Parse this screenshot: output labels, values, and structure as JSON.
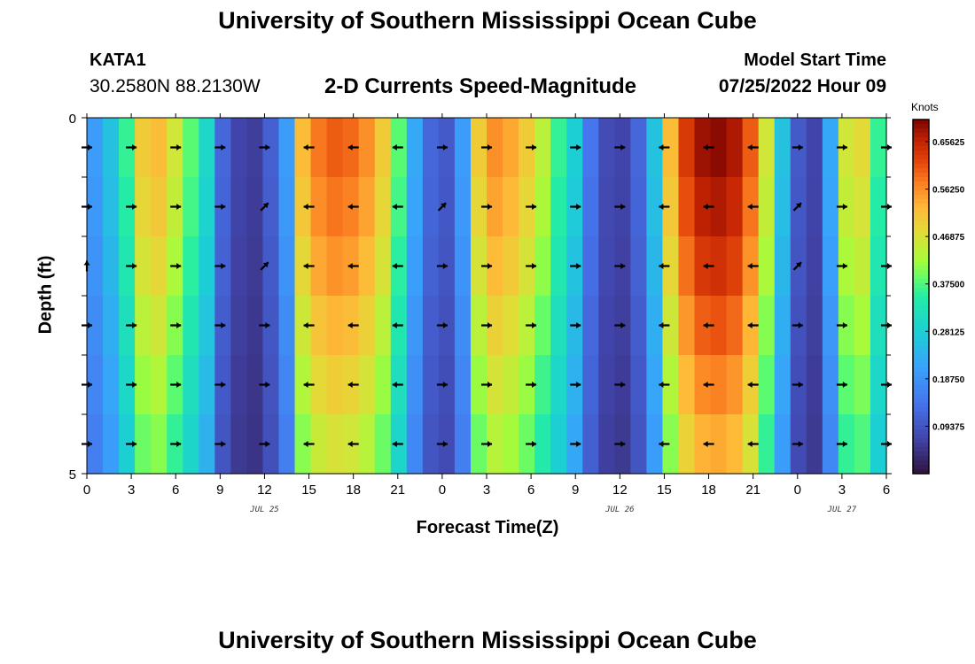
{
  "header": {
    "title": "University of Southern Mississippi Ocean Cube",
    "station": "KATA1",
    "latlon": "30.2580N  88.2130W",
    "subtitle": "2-D Currents Speed-Magnitude",
    "model_start_label": "Model Start Time",
    "model_start_value": "07/25/2022 Hour 09"
  },
  "footer": {
    "title": "University of Southern Mississippi Ocean Cube"
  },
  "chart_data": {
    "type": "heatmap",
    "title": "2-D Currents Speed-Magnitude",
    "xlabel": "Forecast Time(Z)",
    "ylabel": "Depth (ft)",
    "x_tick_labels": [
      "0",
      "3",
      "6",
      "9",
      "12",
      "15",
      "18",
      "21",
      "0",
      "3",
      "6",
      "9",
      "12",
      "15",
      "18",
      "21",
      "0",
      "3",
      "6"
    ],
    "day_labels": [
      {
        "label": "JUL 25",
        "tick_index": 4
      },
      {
        "label": "JUL 26",
        "tick_index": 12
      },
      {
        "label": "JUL 27",
        "tick_index": 17
      }
    ],
    "y_tick_labels": [
      "0",
      "5"
    ],
    "ylim": [
      0,
      5
    ],
    "colorbar": {
      "title": "Knots",
      "ticks": [
        0.09375,
        0.1875,
        0.28125,
        0.375,
        0.46875,
        0.5625,
        0.65625
      ],
      "tick_labels": [
        "0.09375",
        "0.18750",
        "0.28125",
        "0.37500",
        "0.46875",
        "0.56250",
        "0.65625"
      ],
      "range": [
        0,
        0.7
      ]
    },
    "surface_speed_knots": [
      0.2,
      0.26,
      0.36,
      0.5,
      0.52,
      0.46,
      0.38,
      0.3,
      0.12,
      0.07,
      0.06,
      0.11,
      0.2,
      0.52,
      0.58,
      0.6,
      0.59,
      0.56,
      0.5,
      0.38,
      0.22,
      0.12,
      0.1,
      0.2,
      0.5,
      0.56,
      0.54,
      0.5,
      0.44,
      0.36,
      0.28,
      0.14,
      0.08,
      0.07,
      0.12,
      0.26,
      0.52,
      0.63,
      0.68,
      0.69,
      0.67,
      0.6,
      0.46,
      0.26,
      0.1,
      0.07,
      0.22,
      0.46,
      0.48,
      0.36
    ],
    "depth_factors": [
      1.0,
      0.97,
      0.93,
      0.88,
      0.83,
      0.78
    ],
    "arrow_rows": [
      {
        "depth_index": 0,
        "directions": [
          "R",
          "R",
          "R",
          "R",
          "R",
          "L",
          "L",
          "L",
          "R",
          "R",
          "R",
          "R",
          "R",
          "L",
          "L",
          "L",
          "R",
          "R",
          "R"
        ]
      },
      {
        "depth_index": 1,
        "directions": [
          "R",
          "R",
          "R",
          "R",
          "UR",
          "L",
          "L",
          "L",
          "UR",
          "R",
          "R",
          "R",
          "R",
          "L",
          "L",
          "L",
          "UR",
          "R",
          "R"
        ]
      },
      {
        "depth_index": 2,
        "directions": [
          "U",
          "R",
          "R",
          "R",
          "UR",
          "L",
          "L",
          "L",
          "R",
          "R",
          "R",
          "R",
          "R",
          "L",
          "L",
          "L",
          "UR",
          "R",
          "R"
        ]
      },
      {
        "depth_index": 3,
        "directions": [
          "R",
          "R",
          "R",
          "R",
          "R",
          "L",
          "L",
          "L",
          "R",
          "R",
          "R",
          "R",
          "R",
          "L",
          "L",
          "L",
          "R",
          "R",
          "R"
        ]
      },
      {
        "depth_index": 4,
        "directions": [
          "R",
          "R",
          "R",
          "R",
          "R",
          "L",
          "L",
          "L",
          "R",
          "R",
          "R",
          "R",
          "R",
          "L",
          "L",
          "L",
          "R",
          "R",
          "R"
        ]
      },
      {
        "depth_index": 5,
        "directions": [
          "R",
          "R",
          "R",
          "R",
          "R",
          "L",
          "L",
          "L",
          "R",
          "R",
          "R",
          "R",
          "R",
          "L",
          "L",
          "L",
          "R",
          "R",
          "R"
        ]
      }
    ]
  }
}
